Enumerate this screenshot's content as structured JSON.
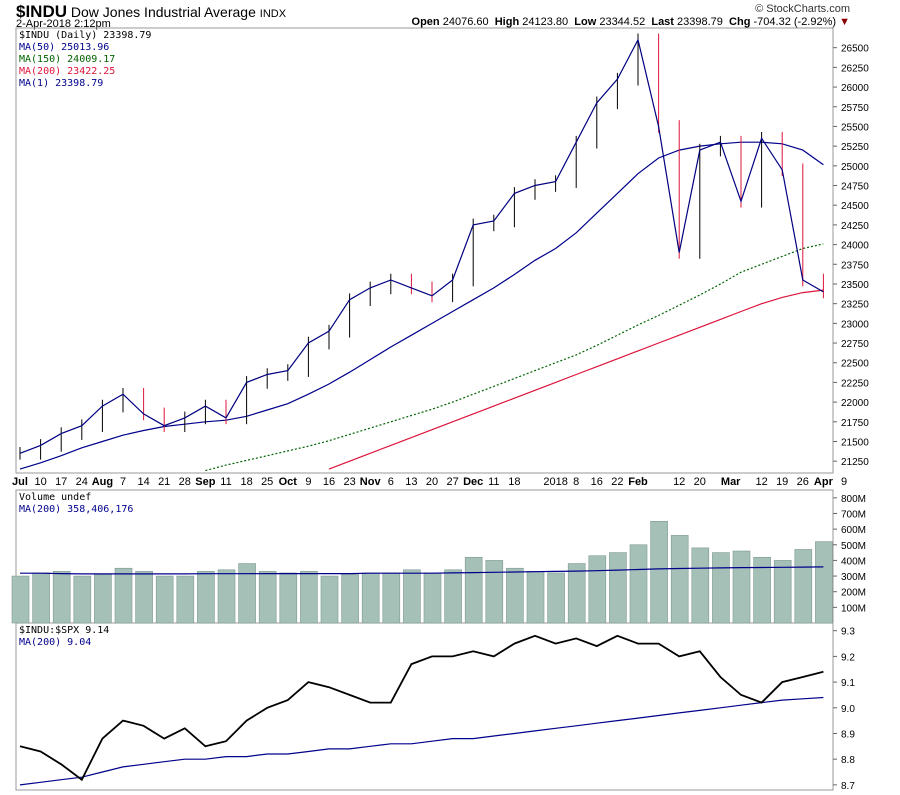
{
  "header": {
    "symbol": "$INDU",
    "name": "Dow Jones Industrial Average",
    "exchange": "INDX",
    "datetime": "2-Apr-2018 2:12pm",
    "brand": "© StockCharts.com",
    "open_label": "Open",
    "open": "24076.60",
    "high_label": "High",
    "high": "24123.80",
    "low_label": "Low",
    "low": "23344.52",
    "last_label": "Last",
    "last": "23398.79",
    "chg_label": "Chg",
    "chg": "-704.32 (-2.92%)"
  },
  "colors": {
    "price": "#000080",
    "ma50": "#00008b",
    "ma150": "#006400",
    "ma200": "#dc143c",
    "volume": "#a5c1b7",
    "ratio": "#000000",
    "down": "#dc143c"
  },
  "chart_data": [
    {
      "type": "line",
      "panel": "price",
      "legend": [
        "$INDU (Daily) 23398.79",
        "MA(50) 25013.96",
        "MA(150) 24009.17",
        "MA(200) 23422.25",
        "MA(1) 23398.79"
      ],
      "ylim": [
        21100,
        26750
      ],
      "yticks": [
        21250,
        21500,
        21750,
        22000,
        22250,
        22500,
        22750,
        23000,
        23250,
        23500,
        23750,
        24000,
        24250,
        24500,
        24750,
        25000,
        25250,
        25500,
        25750,
        26000,
        26250,
        26500
      ],
      "xtick_labels": [
        [
          "Jul",
          0
        ],
        [
          "10",
          1
        ],
        [
          "17",
          2
        ],
        [
          "24",
          3
        ],
        [
          "Aug",
          4
        ],
        [
          "7",
          5
        ],
        [
          "14",
          6
        ],
        [
          "21",
          7
        ],
        [
          "28",
          8
        ],
        [
          "Sep",
          9
        ],
        [
          "11",
          10
        ],
        [
          "18",
          11
        ],
        [
          "25",
          12
        ],
        [
          "Oct",
          13
        ],
        [
          "9",
          14
        ],
        [
          "16",
          15
        ],
        [
          "23",
          16
        ],
        [
          "Nov",
          17
        ],
        [
          "6",
          18
        ],
        [
          "13",
          19
        ],
        [
          "20",
          20
        ],
        [
          "27",
          21
        ],
        [
          "Dec",
          22
        ],
        [
          "11",
          23
        ],
        [
          "18",
          24
        ],
        [
          "2018",
          26
        ],
        [
          "8",
          27
        ],
        [
          "16",
          28
        ],
        [
          "22",
          29
        ],
        [
          "Feb",
          30
        ],
        [
          "12",
          32
        ],
        [
          "20",
          33
        ],
        [
          "Mar",
          34.5
        ],
        [
          "12",
          36
        ],
        [
          "19",
          37
        ],
        [
          "26",
          38
        ],
        [
          "Apr",
          39
        ],
        [
          "9",
          40
        ]
      ],
      "close": [
        21350,
        21450,
        21600,
        21700,
        21950,
        22100,
        21850,
        21700,
        21800,
        21950,
        21800,
        22250,
        22350,
        22400,
        22750,
        22900,
        23300,
        23450,
        23550,
        23450,
        23350,
        23550,
        24250,
        24300,
        24650,
        24750,
        24800,
        25300,
        25800,
        26100,
        26600,
        25500,
        23900,
        25200,
        25300,
        24550,
        25350,
        24950,
        23550,
        23398.79
      ],
      "ma50": [
        21150,
        21230,
        21320,
        21420,
        21500,
        21580,
        21640,
        21690,
        21720,
        21750,
        21770,
        21820,
        21900,
        21980,
        22100,
        22230,
        22380,
        22540,
        22700,
        22850,
        23000,
        23150,
        23300,
        23450,
        23620,
        23800,
        23950,
        24150,
        24400,
        24650,
        24900,
        25100,
        25200,
        25250,
        25280,
        25300,
        25300,
        25280,
        25200,
        25013.96
      ],
      "ma150": [
        null,
        null,
        null,
        null,
        null,
        null,
        null,
        null,
        null,
        21130,
        21200,
        21260,
        21320,
        21380,
        21440,
        21510,
        21590,
        21670,
        21750,
        21830,
        21910,
        22000,
        22100,
        22200,
        22300,
        22400,
        22500,
        22600,
        22720,
        22850,
        22980,
        23100,
        23230,
        23360,
        23500,
        23650,
        23750,
        23850,
        23950,
        24009.17
      ],
      "ma200": [
        null,
        null,
        null,
        null,
        null,
        null,
        null,
        null,
        null,
        null,
        null,
        null,
        null,
        null,
        null,
        21150,
        21250,
        21350,
        21450,
        21550,
        21650,
        21750,
        21850,
        21950,
        22050,
        22150,
        22250,
        22350,
        22450,
        22550,
        22650,
        22750,
        22850,
        22950,
        23050,
        23150,
        23250,
        23330,
        23390,
        23422.25
      ]
    },
    {
      "type": "bar",
      "panel": "volume",
      "legend": [
        "Volume undef",
        "MA(200) 358,406,176"
      ],
      "ylim": [
        0,
        850
      ],
      "unit": "M",
      "yticks": [
        [
          "100M",
          100
        ],
        [
          "200M",
          200
        ],
        [
          "300M",
          300
        ],
        [
          "400M",
          400
        ],
        [
          "500M",
          500
        ],
        [
          "600M",
          600
        ],
        [
          "700M",
          700
        ],
        [
          "800M",
          800
        ]
      ],
      "values": [
        300,
        320,
        330,
        300,
        310,
        350,
        330,
        300,
        300,
        330,
        340,
        380,
        330,
        320,
        330,
        300,
        310,
        320,
        320,
        340,
        320,
        340,
        420,
        400,
        350,
        330,
        320,
        380,
        430,
        450,
        500,
        650,
        560,
        480,
        450,
        460,
        420,
        400,
        470,
        520
      ],
      "ma200": [
        318,
        318,
        316,
        314,
        314,
        314,
        314,
        314,
        314,
        315,
        315,
        315,
        316,
        316,
        316,
        316,
        316,
        318,
        318,
        318,
        318,
        320,
        322,
        324,
        326,
        328,
        330,
        332,
        334,
        338,
        342,
        346,
        348,
        350,
        352,
        354,
        355,
        356,
        357,
        358.4
      ]
    },
    {
      "type": "line",
      "panel": "ratio",
      "legend": [
        "$INDU:$SPX 9.14",
        "MA(200) 9.04"
      ],
      "ylim": [
        8.68,
        9.33
      ],
      "yticks": [
        8.7,
        8.8,
        8.9,
        9.0,
        9.1,
        9.2,
        9.3
      ],
      "values": [
        8.85,
        8.83,
        8.78,
        8.72,
        8.88,
        8.95,
        8.93,
        8.88,
        8.92,
        8.85,
        8.87,
        8.95,
        9.0,
        9.03,
        9.1,
        9.08,
        9.05,
        9.02,
        9.02,
        9.17,
        9.2,
        9.2,
        9.22,
        9.2,
        9.25,
        9.28,
        9.25,
        9.27,
        9.24,
        9.28,
        9.25,
        9.25,
        9.2,
        9.22,
        9.12,
        9.05,
        9.02,
        9.1,
        9.12,
        9.14
      ],
      "ma200": [
        8.7,
        8.71,
        8.72,
        8.73,
        8.75,
        8.77,
        8.78,
        8.79,
        8.8,
        8.8,
        8.81,
        8.81,
        8.82,
        8.82,
        8.83,
        8.84,
        8.84,
        8.85,
        8.86,
        8.86,
        8.87,
        8.88,
        8.88,
        8.89,
        8.9,
        8.91,
        8.92,
        8.93,
        8.94,
        8.95,
        8.96,
        8.97,
        8.98,
        8.99,
        9.0,
        9.01,
        9.02,
        9.03,
        9.035,
        9.04
      ]
    }
  ]
}
